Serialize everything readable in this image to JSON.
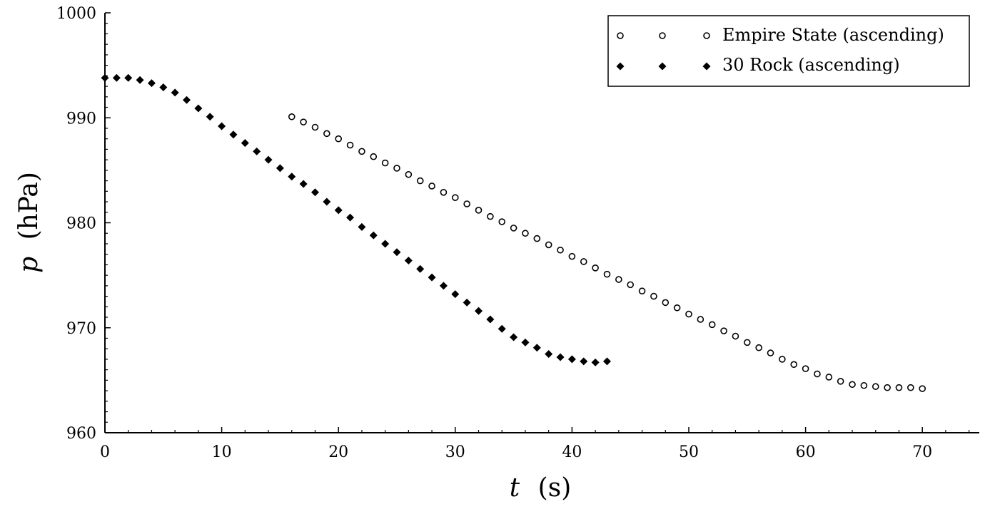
{
  "chart_data": {
    "type": "scatter",
    "xlabel": {
      "var": "t",
      "unit": "(s)"
    },
    "ylabel": {
      "var": "p",
      "unit": "(hPa)"
    },
    "xlim": [
      0,
      75
    ],
    "ylim": [
      960,
      1000
    ],
    "xticks": [
      0,
      10,
      20,
      30,
      40,
      50,
      60,
      70
    ],
    "yticks": [
      960,
      970,
      980,
      990,
      1000
    ],
    "grid": false,
    "legend_position": "top-right",
    "series": [
      {
        "name": "Empire State (ascending)",
        "marker": "open-circle",
        "color": "#000000",
        "x": [
          16,
          17,
          18,
          19,
          20,
          21,
          22,
          23,
          24,
          25,
          26,
          27,
          28,
          29,
          30,
          31,
          32,
          33,
          34,
          35,
          36,
          37,
          38,
          39,
          40,
          41,
          42,
          43,
          44,
          45,
          46,
          47,
          48,
          49,
          50,
          51,
          52,
          53,
          54,
          55,
          56,
          57,
          58,
          59,
          60,
          61,
          62,
          63,
          64,
          65,
          66,
          67,
          68,
          69,
          70
        ],
        "y": [
          990.1,
          989.6,
          989.1,
          988.5,
          988.0,
          987.4,
          986.8,
          986.3,
          985.7,
          985.2,
          984.6,
          984.0,
          983.5,
          982.9,
          982.4,
          981.8,
          981.2,
          980.6,
          980.1,
          979.5,
          979.0,
          978.5,
          977.9,
          977.4,
          976.8,
          976.3,
          975.7,
          975.1,
          974.6,
          974.1,
          973.5,
          973.0,
          972.4,
          971.9,
          971.3,
          970.8,
          970.3,
          969.7,
          969.2,
          968.6,
          968.1,
          967.6,
          967.0,
          966.5,
          966.1,
          965.6,
          965.3,
          964.9,
          964.6,
          964.5,
          964.4,
          964.3,
          964.3,
          964.3,
          964.2
        ]
      },
      {
        "name": "30 Rock (ascending)",
        "marker": "filled-diamond",
        "color": "#000000",
        "x": [
          0,
          1,
          2,
          3,
          4,
          5,
          6,
          7,
          8,
          9,
          10,
          11,
          12,
          13,
          14,
          15,
          16,
          17,
          18,
          19,
          20,
          21,
          22,
          23,
          24,
          25,
          26,
          27,
          28,
          29,
          30,
          31,
          32,
          33,
          34,
          35,
          36,
          37,
          38,
          39,
          40,
          41,
          42,
          43
        ],
        "y": [
          993.8,
          993.8,
          993.8,
          993.6,
          993.3,
          992.9,
          992.4,
          991.7,
          990.9,
          990.1,
          989.2,
          988.4,
          987.6,
          986.8,
          986.0,
          985.2,
          984.4,
          983.7,
          982.9,
          982.0,
          981.2,
          980.5,
          979.6,
          978.8,
          978.0,
          977.2,
          976.4,
          975.6,
          974.8,
          974.0,
          973.2,
          972.4,
          971.6,
          970.8,
          969.9,
          969.1,
          968.6,
          968.1,
          967.5,
          967.2,
          967.0,
          966.8,
          966.7,
          966.8
        ]
      }
    ]
  }
}
